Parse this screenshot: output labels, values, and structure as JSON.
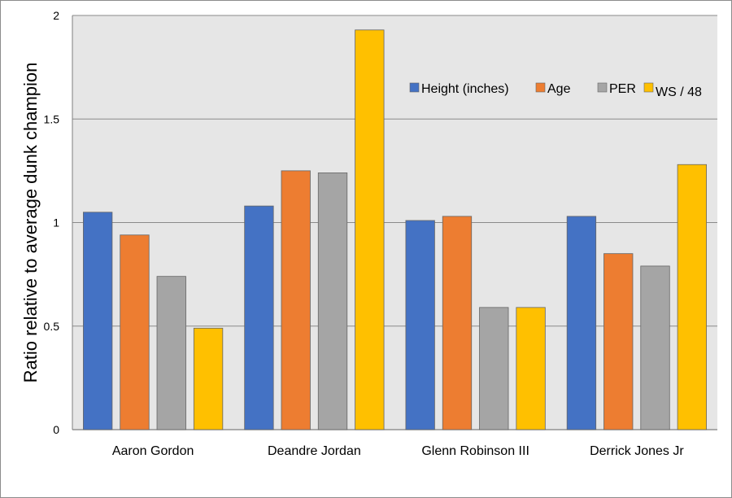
{
  "chart_data": {
    "type": "bar",
    "title": "",
    "xlabel": "",
    "ylabel": "Ratio relative to average dunk champion",
    "ylim": [
      0,
      2
    ],
    "yticks": [
      0,
      0.5,
      1,
      1.5,
      2
    ],
    "ytick_labels": [
      "0",
      "0.5",
      "1",
      "1.5",
      "2"
    ],
    "grid": true,
    "legend_position": "top-right",
    "categories": [
      "Aaron Gordon",
      "Deandre Jordan",
      "Glenn Robinson III",
      "Derrick Jones Jr"
    ],
    "series": [
      {
        "name": "Height (inches)",
        "color": "#4472c4",
        "values": [
          1.05,
          1.08,
          1.01,
          1.03
        ]
      },
      {
        "name": "Age",
        "color": "#ed7d31",
        "values": [
          0.94,
          1.25,
          1.03,
          0.85
        ]
      },
      {
        "name": "PER",
        "color": "#a5a5a5",
        "values": [
          0.74,
          1.24,
          0.59,
          0.79
        ]
      },
      {
        "name": "WS / 48",
        "color": "#ffc000",
        "values": [
          0.49,
          1.93,
          0.59,
          1.28
        ]
      }
    ]
  }
}
